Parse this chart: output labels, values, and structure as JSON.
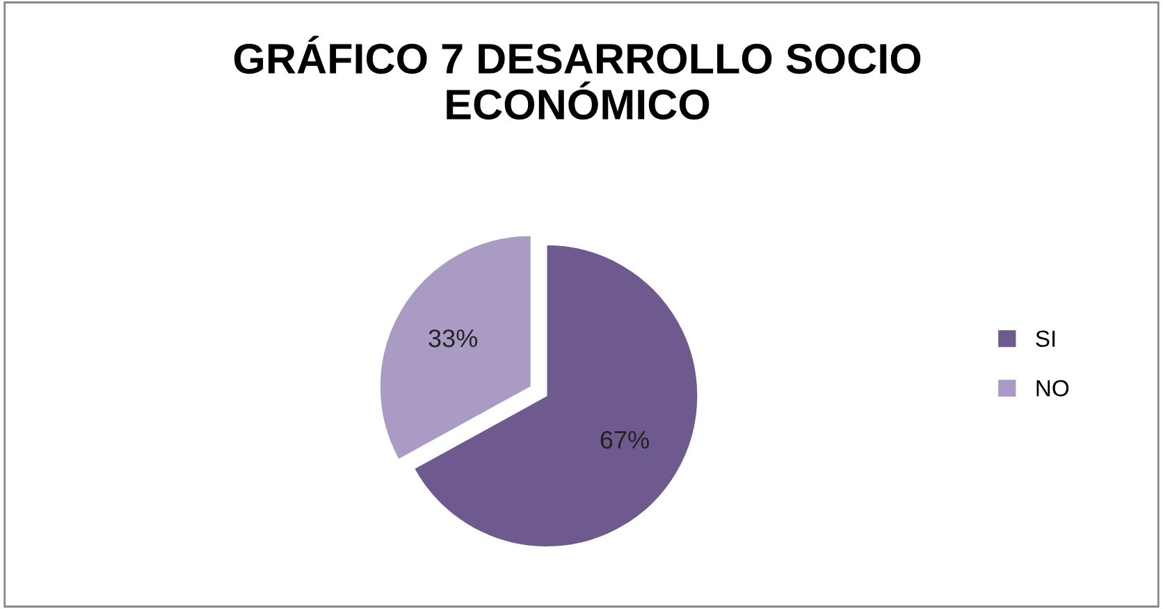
{
  "chart_data": {
    "type": "pie",
    "title": "GRÁFICO 7 DESARROLLO SOCIO ECONÓMICO",
    "categories": [
      "SI",
      "NO"
    ],
    "values": [
      67,
      33
    ],
    "colors": [
      "#6f5a8f",
      "#a99bc4"
    ],
    "value_labels": [
      "67%",
      "33%"
    ],
    "legend": "right"
  }
}
